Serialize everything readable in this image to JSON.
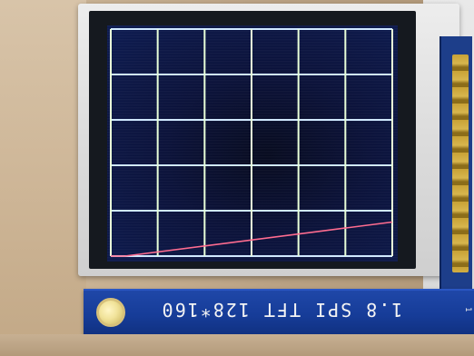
{
  "pcb_label": "1.8 SPI TFT 128*160",
  "screen": {
    "background": "#0b123a",
    "grid_colors": {
      "horizontal": "#cfe8ff",
      "vertical": "#e8ffd8"
    },
    "trace_color": "#ff6a8e",
    "grid": {
      "columns": 6,
      "rows": 5
    },
    "trace_points": [
      [
        0.0,
        0.0
      ],
      [
        0.05,
        0.0
      ],
      [
        1.0,
        0.15
      ]
    ]
  }
}
